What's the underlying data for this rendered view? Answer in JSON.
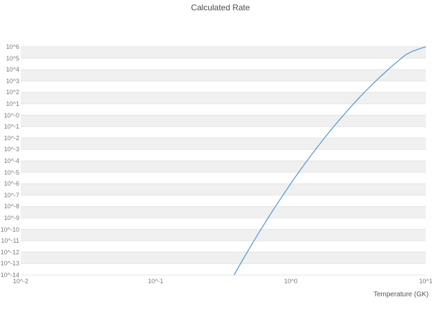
{
  "chart_data": {
    "type": "line",
    "title": "Calculated Rate",
    "xlabel": "Temperature (GK)",
    "ylabel": "",
    "x_scale": "log10",
    "y_scale": "log10",
    "x_range_log10": [
      -2,
      1
    ],
    "y_range_log10": [
      -14,
      6
    ],
    "grid": "horizontal-bands",
    "legend": "none",
    "x_ticks": {
      "values_log10": [
        -2,
        -1,
        0,
        1
      ],
      "labels": [
        "10^-2",
        "10^-1",
        "10^0",
        "10^1"
      ]
    },
    "y_ticks": {
      "values_log10": [
        6,
        5,
        4,
        3,
        2,
        1,
        0,
        -1,
        -2,
        -3,
        -4,
        -5,
        -6,
        -7,
        -8,
        -9,
        -10,
        -11,
        -12,
        -13,
        -14
      ],
      "labels": [
        "10^6",
        "10^5",
        "10^4",
        "10^3",
        "10^2",
        "10^1",
        "10^-0",
        "10^-1",
        "10^-2",
        "10^-3",
        "10^-4",
        "10^-5",
        "10^-6",
        "10^-7",
        "10^-8",
        "10^-9",
        "10^-10",
        "10^-11",
        "10^-12",
        "10^-13",
        "10^-14"
      ]
    },
    "series": [
      {
        "name": "calculated-rate",
        "color": "#569bd5",
        "points_log10": [
          [
            -0.42,
            -14.0
          ],
          [
            -0.4,
            -13.58
          ],
          [
            -0.35,
            -12.55
          ],
          [
            -0.3,
            -11.55
          ],
          [
            -0.25,
            -10.56
          ],
          [
            -0.2,
            -9.6
          ],
          [
            -0.15,
            -8.66
          ],
          [
            -0.1,
            -7.75
          ],
          [
            -0.05,
            -6.86
          ],
          [
            0.0,
            -5.99
          ],
          [
            0.05,
            -5.14
          ],
          [
            0.1,
            -4.32
          ],
          [
            0.15,
            -3.52
          ],
          [
            0.2,
            -2.74
          ],
          [
            0.25,
            -1.98
          ],
          [
            0.3,
            -1.25
          ],
          [
            0.35,
            -0.54
          ],
          [
            0.4,
            0.14
          ],
          [
            0.45,
            0.81
          ],
          [
            0.5,
            1.45
          ],
          [
            0.55,
            2.07
          ],
          [
            0.6,
            2.66
          ],
          [
            0.65,
            3.23
          ],
          [
            0.7,
            3.78
          ],
          [
            0.75,
            4.31
          ],
          [
            0.8,
            4.81
          ],
          [
            0.85,
            5.29
          ],
          [
            0.9,
            5.6
          ],
          [
            0.95,
            5.81
          ],
          [
            1.0,
            6.0
          ]
        ]
      }
    ]
  },
  "colors": {
    "band": "#f0f0f0",
    "gridline": "#e4e4e4",
    "tick_text": "#7a7a7a",
    "title_text": "#4a4a4a",
    "line": "#569bd5",
    "background": "#ffffff"
  }
}
